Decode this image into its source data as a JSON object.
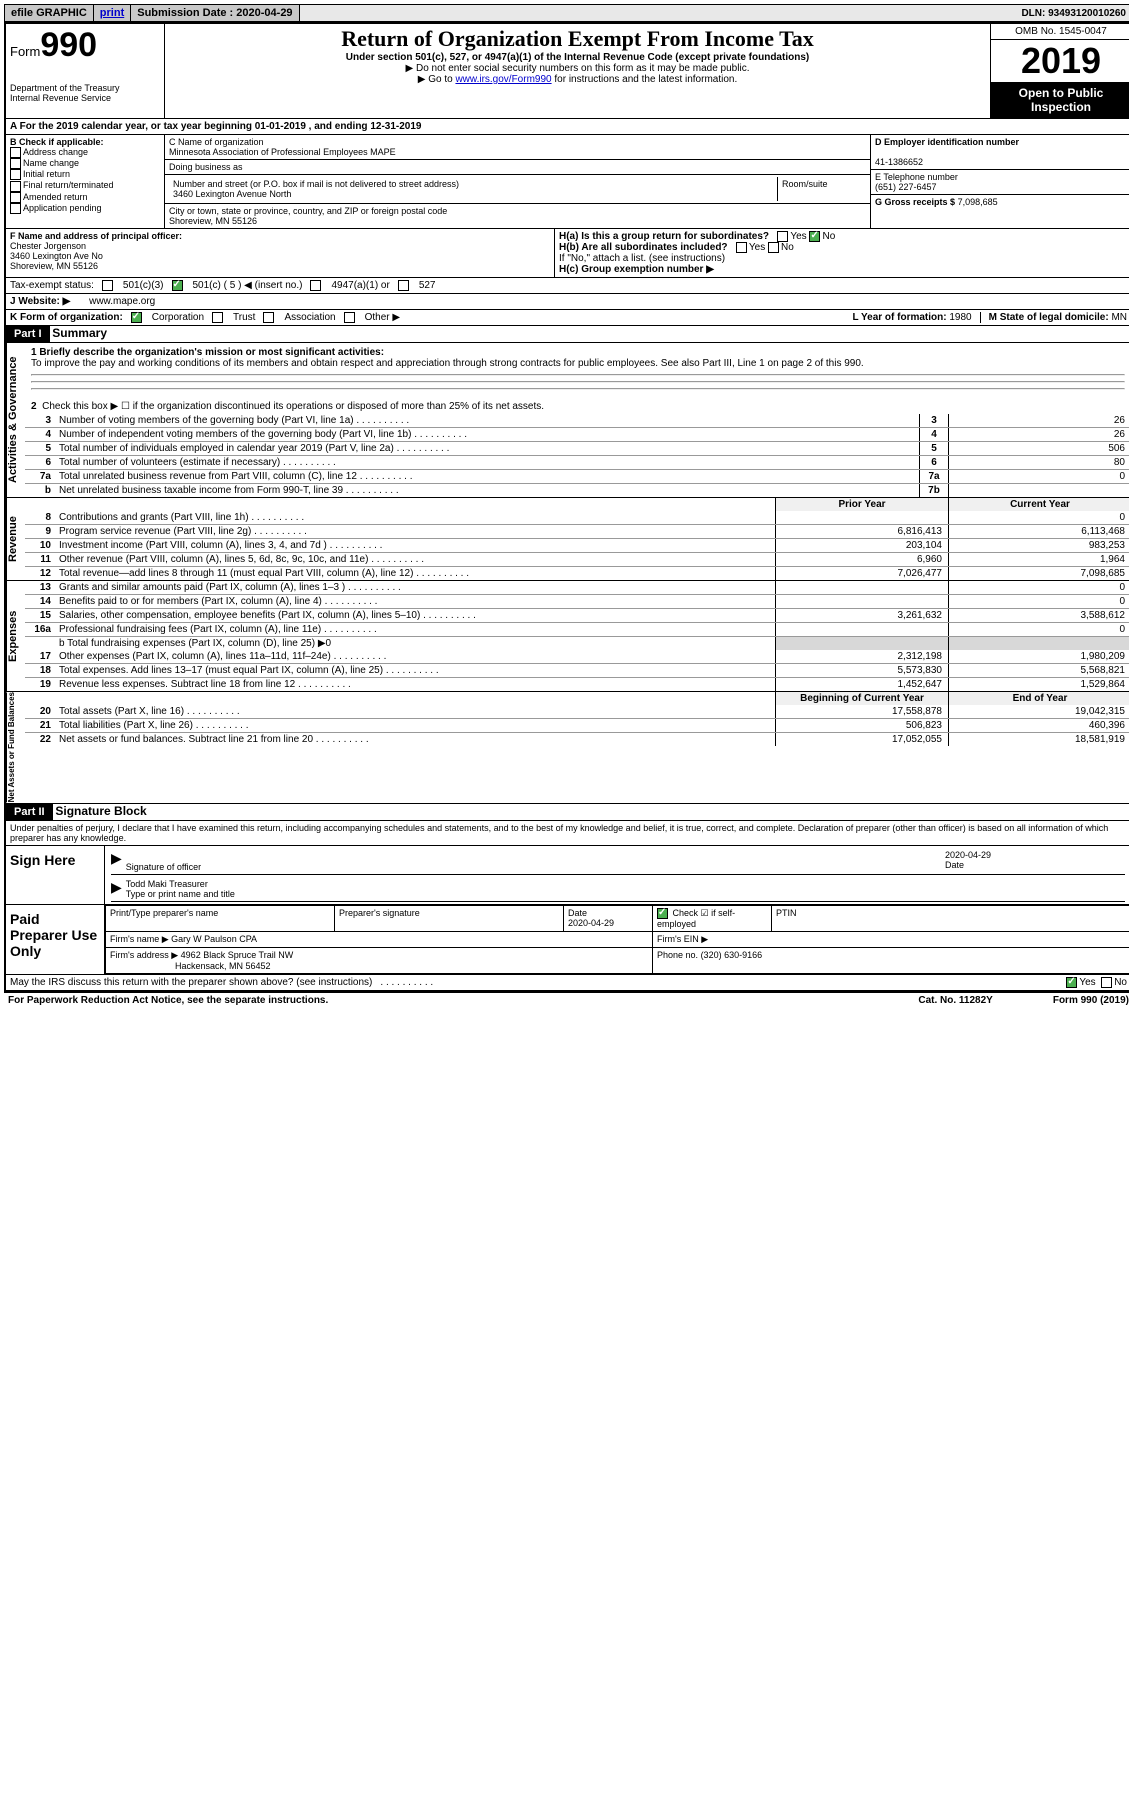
{
  "topbar": {
    "efile": "efile GRAPHIC",
    "print": "print",
    "sub_label": "Submission Date :",
    "sub_date": "2020-04-29",
    "dln_label": "DLN:",
    "dln": "93493120010260"
  },
  "header": {
    "form_word": "Form",
    "form_num": "990",
    "dept": "Department of the Treasury\nInternal Revenue Service",
    "title": "Return of Organization Exempt From Income Tax",
    "sub1": "Under section 501(c), 527, or 4947(a)(1) of the Internal Revenue Code (except private foundations)",
    "sub2": "▶ Do not enter social security numbers on this form as it may be made public.",
    "sub3_pre": "▶ Go to ",
    "sub3_link": "www.irs.gov/Form990",
    "sub3_post": " for instructions and the latest information.",
    "omb": "OMB No. 1545-0047",
    "year": "2019",
    "open": "Open to Public Inspection"
  },
  "line_a": "A For the 2019 calendar year, or tax year beginning 01-01-2019   , and ending 12-31-2019",
  "box_b": {
    "label": "B Check if applicable:",
    "opts": [
      "Address change",
      "Name change",
      "Initial return",
      "Final return/terminated",
      "Amended return",
      "Application pending"
    ]
  },
  "box_c": {
    "name_label": "C Name of organization",
    "name": "Minnesota Association of Professional Employees MAPE",
    "dba_label": "Doing business as",
    "street_label": "Number and street (or P.O. box if mail is not delivered to street address)",
    "room_label": "Room/suite",
    "street": "3460 Lexington Avenue North",
    "city_label": "City or town, state or province, country, and ZIP or foreign postal code",
    "city": "Shoreview, MN  55126"
  },
  "box_d": {
    "label": "D Employer identification number",
    "val": "41-1386652"
  },
  "box_e": {
    "label": "E Telephone number",
    "val": "(651) 227-6457"
  },
  "box_g": {
    "label": "G Gross receipts $",
    "val": "7,098,685"
  },
  "box_f": {
    "label": "F Name and address of principal officer:",
    "name": "Chester Jorgenson",
    "addr1": "3460 Lexington Ave No",
    "addr2": "Shoreview, MN  55126"
  },
  "box_h": {
    "a": "H(a)  Is this a group return for subordinates?",
    "b": "H(b)  Are all subordinates included?",
    "note": "If \"No,\" attach a list. (see instructions)",
    "c": "H(c)  Group exemption number ▶"
  },
  "tax_exempt": {
    "label": "Tax-exempt status:",
    "o1": "501(c)(3)",
    "o2": "501(c) ( 5 ) ◀ (insert no.)",
    "o3": "4947(a)(1) or",
    "o4": "527"
  },
  "line_j": {
    "label": "J Website: ▶",
    "val": "www.mape.org"
  },
  "line_k": {
    "label": "K Form of organization:",
    "opts": [
      "Corporation",
      "Trust",
      "Association",
      "Other ▶"
    ]
  },
  "line_l": {
    "label": "L Year of formation:",
    "val": "1980"
  },
  "line_m": {
    "label": "M State of legal domicile:",
    "val": "MN"
  },
  "part1": {
    "title_num": "Part I",
    "title": "Summary",
    "mission_label": "1  Briefly describe the organization's mission or most significant activities:",
    "mission": "To improve the pay and working conditions of its members and obtain respect and appreciation through strong contracts for public employees. See also Part III, Line 1 on page 2 of this 990.",
    "l2": "Check this box ▶ ☐ if the organization discontinued its operations or disposed of more than 25% of its net assets.",
    "rows_top": [
      {
        "n": "3",
        "d": "Number of voting members of the governing body (Part VI, line 1a)",
        "b": "3",
        "v": "26"
      },
      {
        "n": "4",
        "d": "Number of independent voting members of the governing body (Part VI, line 1b)",
        "b": "4",
        "v": "26"
      },
      {
        "n": "5",
        "d": "Total number of individuals employed in calendar year 2019 (Part V, line 2a)",
        "b": "5",
        "v": "506"
      },
      {
        "n": "6",
        "d": "Total number of volunteers (estimate if necessary)",
        "b": "6",
        "v": "80"
      },
      {
        "n": "7a",
        "d": "Total unrelated business revenue from Part VIII, column (C), line 12",
        "b": "7a",
        "v": "0"
      },
      {
        "n": "b",
        "d": "Net unrelated business taxable income from Form 990-T, line 39",
        "b": "7b",
        "v": ""
      }
    ],
    "hdr_prior": "Prior Year",
    "hdr_curr": "Current Year",
    "revenue": [
      {
        "n": "8",
        "d": "Contributions and grants (Part VIII, line 1h)",
        "p": "",
        "c": "0"
      },
      {
        "n": "9",
        "d": "Program service revenue (Part VIII, line 2g)",
        "p": "6,816,413",
        "c": "6,113,468"
      },
      {
        "n": "10",
        "d": "Investment income (Part VIII, column (A), lines 3, 4, and 7d )",
        "p": "203,104",
        "c": "983,253"
      },
      {
        "n": "11",
        "d": "Other revenue (Part VIII, column (A), lines 5, 6d, 8c, 9c, 10c, and 11e)",
        "p": "6,960",
        "c": "1,964"
      },
      {
        "n": "12",
        "d": "Total revenue—add lines 8 through 11 (must equal Part VIII, column (A), line 12)",
        "p": "7,026,477",
        "c": "7,098,685"
      }
    ],
    "expenses": [
      {
        "n": "13",
        "d": "Grants and similar amounts paid (Part IX, column (A), lines 1–3 )",
        "p": "",
        "c": "0"
      },
      {
        "n": "14",
        "d": "Benefits paid to or for members (Part IX, column (A), line 4)",
        "p": "",
        "c": "0"
      },
      {
        "n": "15",
        "d": "Salaries, other compensation, employee benefits (Part IX, column (A), lines 5–10)",
        "p": "3,261,632",
        "c": "3,588,612"
      },
      {
        "n": "16a",
        "d": "Professional fundraising fees (Part IX, column (A), line 11e)",
        "p": "",
        "c": "0"
      }
    ],
    "l16b": "b  Total fundraising expenses (Part IX, column (D), line 25) ▶0",
    "expenses2": [
      {
        "n": "17",
        "d": "Other expenses (Part IX, column (A), lines 11a–11d, 11f–24e)",
        "p": "2,312,198",
        "c": "1,980,209"
      },
      {
        "n": "18",
        "d": "Total expenses. Add lines 13–17 (must equal Part IX, column (A), line 25)",
        "p": "5,573,830",
        "c": "5,568,821"
      },
      {
        "n": "19",
        "d": "Revenue less expenses. Subtract line 18 from line 12",
        "p": "1,452,647",
        "c": "1,529,864"
      }
    ],
    "hdr_begin": "Beginning of Current Year",
    "hdr_end": "End of Year",
    "net": [
      {
        "n": "20",
        "d": "Total assets (Part X, line 16)",
        "p": "17,558,878",
        "c": "19,042,315"
      },
      {
        "n": "21",
        "d": "Total liabilities (Part X, line 26)",
        "p": "506,823",
        "c": "460,396"
      },
      {
        "n": "22",
        "d": "Net assets or fund balances. Subtract line 21 from line 20",
        "p": "17,052,055",
        "c": "18,581,919"
      }
    ]
  },
  "part2": {
    "title_num": "Part II",
    "title": "Signature Block",
    "decl": "Under penalties of perjury, I declare that I have examined this return, including accompanying schedules and statements, and to the best of my knowledge and belief, it is true, correct, and complete. Declaration of preparer (other than officer) is based on all information of which preparer has any knowledge.",
    "sign_here": "Sign Here",
    "sig_officer": "Signature of officer",
    "sig_date": "2020-04-29",
    "date_lbl": "Date",
    "sig_name": "Todd Maki  Treasurer",
    "sig_name_lbl": "Type or print name and title",
    "paid": "Paid Preparer Use Only",
    "prep_name_lbl": "Print/Type preparer's name",
    "prep_sig_lbl": "Preparer's signature",
    "prep_date_lbl": "Date",
    "prep_date": "2020-04-29",
    "prep_check": "Check ☑ if self-employed",
    "ptin_lbl": "PTIN",
    "firm_name_lbl": "Firm's name    ▶",
    "firm_name": "Gary W Paulson CPA",
    "firm_ein_lbl": "Firm's EIN ▶",
    "firm_addr_lbl": "Firm's address ▶",
    "firm_addr1": "4962 Black Spruce Trail NW",
    "firm_addr2": "Hackensack, MN  56452",
    "phone_lbl": "Phone no.",
    "phone": "(320) 630-9166",
    "discuss": "May the IRS discuss this return with the preparer shown above? (see instructions)"
  },
  "footer": {
    "left": "For Paperwork Reduction Act Notice, see the separate instructions.",
    "mid": "Cat. No. 11282Y",
    "right": "Form 990 (2019)"
  },
  "labels": {
    "activities": "Activities & Governance",
    "revenue": "Revenue",
    "expenses": "Expenses",
    "net": "Net Assets or Fund Balances",
    "yes": "Yes",
    "no": "No"
  }
}
